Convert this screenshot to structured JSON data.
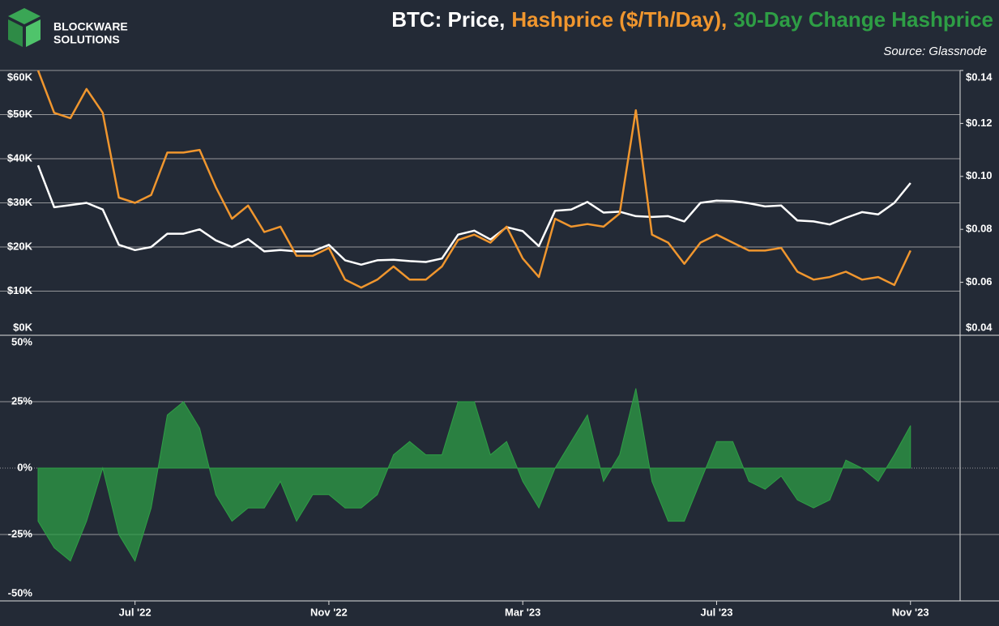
{
  "logo": {
    "line1": "BLOCKWARE",
    "line2": "SOLUTIONS"
  },
  "source": "Source: Glassnode",
  "chart_data": [
    {
      "type": "line",
      "ylim": [
        0,
        60000
      ],
      "yticks": [
        {
          "value": 0,
          "label": "$0K"
        },
        {
          "value": 10000,
          "label": "$10K"
        },
        {
          "value": 20000,
          "label": "$20K"
        },
        {
          "value": 30000,
          "label": "$30K"
        },
        {
          "value": 40000,
          "label": "$40K"
        },
        {
          "value": 50000,
          "label": "$50K"
        },
        {
          "value": 60000,
          "label": "$60K"
        }
      ],
      "y2lim": [
        0.04,
        0.14
      ],
      "y2ticks": [
        {
          "value": 0.04,
          "label": "$0.04"
        },
        {
          "value": 0.06,
          "label": "$0.06"
        },
        {
          "value": 0.08,
          "label": "$0.08"
        },
        {
          "value": 0.1,
          "label": "$0.10"
        },
        {
          "value": 0.12,
          "label": "$0.12"
        },
        {
          "value": 0.14,
          "label": "$0.14"
        }
      ],
      "grid": true,
      "series": [
        {
          "name": "BTC: Price,",
          "color": "#ffffff",
          "values": [
            38500,
            29000,
            29500,
            30000,
            28500,
            20500,
            19300,
            20000,
            23000,
            23000,
            24000,
            21500,
            20000,
            21800,
            19000,
            19300,
            19000,
            19000,
            20500,
            17000,
            16000,
            17000,
            17100,
            16800,
            16600,
            17400,
            22800,
            23700,
            21700,
            24500,
            23600,
            20200,
            28200,
            28500,
            30200,
            27800,
            28000,
            27000,
            26800,
            27000,
            25800,
            30000,
            30500,
            30400,
            29900,
            29200,
            29400,
            26000,
            25800,
            25100,
            26600,
            27900,
            27400,
            30000,
            34500
          ]
        },
        {
          "name": "Hashprice ($/Th/Day),",
          "color": "#f0962e",
          "axis": "y2",
          "values": [
            0.14,
            0.124,
            0.122,
            0.133,
            0.124,
            0.092,
            0.09,
            0.093,
            0.109,
            0.109,
            0.11,
            0.096,
            0.084,
            0.089,
            0.079,
            0.081,
            0.07,
            0.07,
            0.073,
            0.061,
            0.058,
            0.061,
            0.066,
            0.061,
            0.061,
            0.066,
            0.076,
            0.078,
            0.075,
            0.081,
            0.069,
            0.062,
            0.084,
            0.081,
            0.082,
            0.081,
            0.086,
            0.125,
            0.078,
            0.075,
            0.067,
            0.075,
            0.078,
            0.075,
            0.072,
            0.072,
            0.073,
            0.064,
            0.061,
            0.062,
            0.064,
            0.061,
            0.062,
            0.059,
            0.072
          ]
        }
      ]
    },
    {
      "type": "area",
      "categories": [
        null,
        null,
        null,
        null,
        null,
        null,
        "Jul '22",
        null,
        null,
        null,
        null,
        null,
        null,
        null,
        null,
        null,
        null,
        null,
        "Nov '22",
        null,
        null,
        null,
        null,
        null,
        null,
        null,
        null,
        null,
        null,
        null,
        "Mar '23",
        null,
        null,
        null,
        null,
        null,
        null,
        null,
        null,
        null,
        null,
        null,
        "Jul '23",
        null,
        null,
        null,
        null,
        null,
        null,
        null,
        null,
        null,
        null,
        null,
        "Nov '23"
      ],
      "ylim": [
        -50,
        50
      ],
      "yticks": [
        {
          "value": -50,
          "label": "-50%"
        },
        {
          "value": -25,
          "label": "-25%"
        },
        {
          "value": 0,
          "label": "0%"
        },
        {
          "value": 25,
          "label": "25%"
        },
        {
          "value": 50,
          "label": "50%"
        }
      ],
      "grid": true,
      "series": [
        {
          "name": "30-Day Change Hashprice",
          "color": "#2e9e45",
          "values": [
            -20,
            -30,
            -35,
            -20,
            0,
            -25,
            -35,
            -15,
            20,
            25,
            15,
            -10,
            -20,
            -15,
            -15,
            -5,
            -20,
            -10,
            -10,
            -15,
            -15,
            -10,
            5,
            10,
            5,
            5,
            25,
            25,
            5,
            10,
            -5,
            -15,
            0,
            10,
            20,
            -5,
            5,
            30,
            -5,
            -20,
            -20,
            -5,
            10,
            10,
            -5,
            -8,
            -3,
            -12,
            -15,
            -12,
            3,
            0,
            -5,
            5,
            16
          ]
        }
      ]
    }
  ]
}
